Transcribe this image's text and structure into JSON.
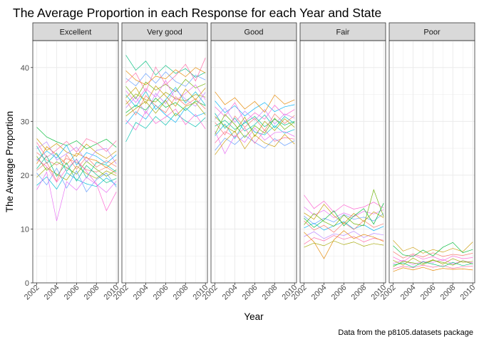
{
  "chart_data": {
    "type": "line",
    "title": "The Average Proportion in each Response for each Year and State",
    "xlabel": "Year",
    "ylabel": "The Average Proportion",
    "caption": "Data from the p8105.datasets package",
    "facets": [
      "Excellent",
      "Very good",
      "Good",
      "Fair",
      "Poor"
    ],
    "xlim": [
      2001.6,
      2010.2
    ],
    "ylim": [
      0,
      45
    ],
    "x_ticks": [
      2002,
      2004,
      2006,
      2008,
      2010
    ],
    "x_tick_labels": [
      "2002",
      "2004",
      "2006",
      "2008",
      "2010"
    ],
    "y_ticks": [
      0,
      10,
      20,
      30,
      40
    ],
    "y_tick_labels": [
      "0",
      "10",
      "20",
      "30",
      "40"
    ],
    "years": [
      2002,
      2003,
      2004,
      2005,
      2006,
      2007,
      2008,
      2009,
      2010
    ],
    "grid": true,
    "legend": "none",
    "line_colors": [
      "#F8766D",
      "#E58700",
      "#C99800",
      "#A3A500",
      "#6BB100",
      "#00BA38",
      "#00BF7D",
      "#00C0AF",
      "#00BCD8",
      "#00B0F6",
      "#619CFF",
      "#B983FF",
      "#E76BF3",
      "#FD61D1",
      "#FF67A4"
    ],
    "series": [
      {
        "facet": "Excellent",
        "values": [
          24.2,
          22.8,
          21.9,
          23.1,
          22.4,
          21.0,
          20.6,
          21.5,
          20.3
        ]
      },
      {
        "facet": "Excellent",
        "values": [
          22.1,
          25.3,
          23.8,
          22.0,
          24.1,
          23.2,
          22.7,
          21.4,
          22.9
        ]
      },
      {
        "facet": "Excellent",
        "values": [
          26.8,
          24.6,
          25.9,
          24.3,
          23.5,
          25.8,
          24.2,
          23.1,
          24.5
        ]
      },
      {
        "facet": "Excellent",
        "values": [
          19.6,
          21.4,
          20.2,
          19.1,
          21.7,
          20.3,
          19.4,
          20.8,
          19.9
        ]
      },
      {
        "facet": "Excellent",
        "values": [
          23.5,
          20.9,
          22.5,
          21.4,
          20.2,
          22.6,
          21.1,
          19.8,
          21.0
        ]
      },
      {
        "facet": "Excellent",
        "values": [
          28.9,
          27.1,
          26.2,
          25.5,
          26.4,
          24.9,
          25.8,
          26.7,
          25.2
        ]
      },
      {
        "facet": "Excellent",
        "values": [
          21.2,
          23.6,
          19.8,
          22.3,
          18.9,
          21.8,
          20.1,
          18.6,
          19.4
        ]
      },
      {
        "facet": "Excellent",
        "values": [
          25.4,
          22.2,
          24.1,
          20.7,
          23.0,
          19.5,
          22.4,
          21.9,
          20.6
        ]
      },
      {
        "facet": "Excellent",
        "values": [
          18.1,
          19.7,
          17.4,
          20.5,
          19.2,
          18.4,
          17.9,
          19.5,
          18.2
        ]
      },
      {
        "facet": "Excellent",
        "values": [
          22.7,
          24.5,
          23.2,
          25.6,
          21.9,
          24.2,
          23.5,
          22.2,
          23.8
        ]
      },
      {
        "facet": "Excellent",
        "values": [
          20.4,
          18.2,
          21.3,
          17.6,
          20.8,
          16.9,
          19.2,
          20.4,
          17.8
        ]
      },
      {
        "facet": "Excellent",
        "values": [
          24.9,
          26.2,
          22.8,
          24.0,
          25.2,
          22.5,
          24.6,
          25.0,
          22.1
        ]
      },
      {
        "facet": "Excellent",
        "values": [
          17.3,
          20.6,
          11.5,
          18.8,
          17.2,
          19.6,
          18.3,
          16.8,
          18.9
        ]
      },
      {
        "facet": "Excellent",
        "values": [
          23.0,
          21.6,
          18.7,
          21.2,
          22.9,
          20.7,
          18.4,
          13.4,
          16.9
        ]
      },
      {
        "facet": "Excellent",
        "values": [
          26.1,
          23.3,
          24.7,
          26.3,
          24.3,
          26.8,
          26.0,
          24.4,
          26.4
        ]
      },
      {
        "facet": "Excellent",
        "values": [
          20.9,
          22.4,
          18.9,
          23.8,
          21.1,
          23.4,
          21.5,
          22.7,
          21.6
        ]
      },
      {
        "facet": "Very good",
        "values": [
          33.2,
          35.1,
          34.0,
          33.6,
          35.4,
          34.2,
          33.8,
          35.0,
          34.5
        ]
      },
      {
        "facet": "Very good",
        "values": [
          36.5,
          34.2,
          37.3,
          35.8,
          36.9,
          35.5,
          37.8,
          36.2,
          37.0
        ]
      },
      {
        "facet": "Very good",
        "values": [
          31.6,
          33.0,
          32.1,
          34.3,
          32.6,
          33.5,
          32.0,
          33.8,
          32.9
        ]
      },
      {
        "facet": "Very good",
        "values": [
          42.3,
          39.5,
          41.2,
          38.6,
          40.4,
          38.9,
          39.8,
          38.2,
          39.1
        ]
      },
      {
        "facet": "Very good",
        "values": [
          26.2,
          29.8,
          28.7,
          30.9,
          29.3,
          31.5,
          30.1,
          29.0,
          30.7
        ]
      },
      {
        "facet": "Very good",
        "values": [
          34.9,
          32.7,
          35.6,
          32.2,
          34.0,
          36.3,
          33.4,
          35.5,
          33.0
        ]
      },
      {
        "facet": "Very good",
        "values": [
          29.5,
          31.8,
          30.4,
          33.0,
          31.2,
          29.8,
          32.5,
          30.9,
          31.6
        ]
      },
      {
        "facet": "Very good",
        "values": [
          38.0,
          36.6,
          38.9,
          37.1,
          39.2,
          37.4,
          36.5,
          38.6,
          37.7
        ]
      },
      {
        "facet": "Very good",
        "values": [
          32.5,
          34.6,
          31.4,
          35.2,
          33.3,
          35.9,
          34.1,
          32.8,
          35.4
        ]
      },
      {
        "facet": "Very good",
        "values": [
          35.7,
          33.5,
          36.1,
          34.5,
          37.6,
          33.9,
          35.2,
          36.8,
          34.0
        ]
      },
      {
        "facet": "Very good",
        "values": [
          30.2,
          28.4,
          31.9,
          29.6,
          30.8,
          32.3,
          29.4,
          31.3,
          28.6
        ]
      },
      {
        "facet": "Very good",
        "values": [
          37.2,
          39.0,
          35.5,
          40.1,
          36.8,
          38.5,
          40.6,
          37.5,
          41.8
        ]
      },
      {
        "facet": "Very good",
        "values": [
          33.9,
          31.2,
          34.8,
          32.9,
          31.6,
          34.6,
          33.0,
          34.2,
          32.3
        ]
      },
      {
        "facet": "Very good",
        "values": [
          39.4,
          37.7,
          36.8,
          38.4,
          37.9,
          39.6,
          38.3,
          40.0,
          39.0
        ]
      },
      {
        "facet": "Very good",
        "values": [
          34.4,
          36.3,
          33.3,
          36.6,
          34.7,
          32.8,
          36.0,
          34.0,
          36.2
        ]
      },
      {
        "facet": "Very good",
        "values": [
          31.0,
          32.4,
          33.7,
          31.5,
          33.9,
          31.0,
          32.8,
          33.5,
          31.2
        ]
      },
      {
        "facet": "Good",
        "values": [
          29.1,
          30.2,
          28.5,
          29.7,
          30.9,
          29.0,
          30.4,
          29.3,
          30.0
        ]
      },
      {
        "facet": "Good",
        "values": [
          31.5,
          28.7,
          30.6,
          28.2,
          29.4,
          31.2,
          28.8,
          30.9,
          29.6
        ]
      },
      {
        "facet": "Good",
        "values": [
          27.3,
          29.5,
          26.8,
          30.1,
          28.0,
          27.5,
          29.2,
          27.8,
          28.5
        ]
      },
      {
        "facet": "Good",
        "values": [
          33.8,
          31.6,
          32.9,
          31.0,
          32.4,
          33.5,
          31.8,
          32.7,
          33.1
        ]
      },
      {
        "facet": "Good",
        "values": [
          24.6,
          26.9,
          25.7,
          27.4,
          26.1,
          25.0,
          26.8,
          25.5,
          26.4
        ]
      },
      {
        "facet": "Good",
        "values": [
          30.4,
          32.5,
          29.8,
          31.9,
          30.2,
          32.2,
          29.5,
          31.4,
          30.6
        ]
      },
      {
        "facet": "Good",
        "values": [
          28.2,
          24.0,
          27.4,
          26.1,
          28.8,
          26.5,
          27.9,
          28.1,
          27.2
        ]
      },
      {
        "facet": "Good",
        "values": [
          32.7,
          30.9,
          33.5,
          29.9,
          31.6,
          30.4,
          33.0,
          31.1,
          32.2
        ]
      },
      {
        "facet": "Good",
        "values": [
          26.0,
          28.1,
          27.1,
          28.8,
          25.9,
          28.4,
          26.3,
          27.0,
          26.7
        ]
      },
      {
        "facet": "Good",
        "values": [
          29.8,
          27.5,
          31.0,
          28.9,
          30.6,
          28.3,
          31.4,
          29.6,
          31.1
        ]
      },
      {
        "facet": "Good",
        "values": [
          35.5,
          33.1,
          34.4,
          32.3,
          33.7,
          31.7,
          34.9,
          33.2,
          34.0
        ]
      },
      {
        "facet": "Good",
        "values": [
          23.8,
          26.3,
          28.2,
          24.9,
          27.5,
          26.0,
          25.3,
          27.6,
          25.8
        ]
      },
      {
        "facet": "Good",
        "values": [
          30.9,
          29.1,
          28.0,
          30.8,
          27.2,
          30.0,
          28.3,
          30.5,
          28.9
        ]
      },
      {
        "facet": "Good",
        "values": [
          27.6,
          31.3,
          29.4,
          27.0,
          29.2,
          27.8,
          30.6,
          28.5,
          29.9
        ]
      },
      {
        "facet": "Fair",
        "values": [
          10.2,
          11.1,
          9.8,
          10.6,
          11.4,
          10.0,
          10.8,
          9.7,
          10.5
        ]
      },
      {
        "facet": "Fair",
        "values": [
          12.4,
          10.9,
          12.0,
          11.3,
          12.7,
          11.8,
          12.2,
          11.5,
          12.9
        ]
      },
      {
        "facet": "Fair",
        "values": [
          8.6,
          9.5,
          8.2,
          9.1,
          8.8,
          9.6,
          8.4,
          9.2,
          8.9
        ]
      },
      {
        "facet": "Fair",
        "values": [
          14.1,
          12.6,
          13.5,
          12.1,
          13.0,
          12.3,
          13.3,
          12.8,
          13.6
        ]
      },
      {
        "facet": "Fair",
        "values": [
          16.3,
          13.8,
          15.2,
          13.1,
          14.5,
          13.7,
          14.1,
          15.0,
          13.9
        ]
      },
      {
        "facet": "Fair",
        "values": [
          7.2,
          8.4,
          7.8,
          8.8,
          8.1,
          8.6,
          7.6,
          8.3,
          7.9
        ]
      },
      {
        "facet": "Fair",
        "values": [
          11.5,
          9.8,
          10.7,
          9.4,
          11.2,
          9.9,
          11.6,
          10.3,
          11.0
        ]
      },
      {
        "facet": "Fair",
        "values": [
          9.4,
          7.6,
          4.5,
          8.0,
          9.7,
          8.2,
          9.0,
          8.5,
          7.7
        ]
      },
      {
        "facet": "Fair",
        "values": [
          13.0,
          11.8,
          14.6,
          12.5,
          11.0,
          12.9,
          11.4,
          13.2,
          12.1
        ]
      },
      {
        "facet": "Fair",
        "values": [
          6.6,
          7.4,
          6.9,
          7.8,
          7.1,
          7.6,
          6.8,
          7.3,
          7.0
        ]
      },
      {
        "facet": "Fair",
        "values": [
          10.8,
          12.9,
          11.4,
          10.5,
          12.6,
          11.0,
          10.6,
          17.3,
          12.3
        ]
      },
      {
        "facet": "Fair",
        "values": [
          12.0,
          10.3,
          11.7,
          13.4,
          10.6,
          12.4,
          13.8,
          10.9,
          14.8
        ]
      },
      {
        "facet": "Poor",
        "values": [
          3.6,
          4.2,
          3.4,
          4.0,
          3.8,
          4.4,
          3.5,
          4.1,
          3.7
        ]
      },
      {
        "facet": "Poor",
        "values": [
          4.8,
          3.9,
          5.2,
          4.4,
          4.9,
          4.1,
          5.0,
          4.5,
          4.7
        ]
      },
      {
        "facet": "Poor",
        "values": [
          2.6,
          3.1,
          2.8,
          3.3,
          2.9,
          3.2,
          2.7,
          3.0,
          3.1
        ]
      },
      {
        "facet": "Poor",
        "values": [
          5.8,
          4.6,
          5.4,
          4.8,
          5.6,
          4.9,
          5.3,
          5.1,
          5.5
        ]
      },
      {
        "facet": "Poor",
        "values": [
          2.1,
          2.8,
          2.4,
          2.9,
          2.3,
          2.7,
          2.5,
          2.6,
          2.4
        ]
      },
      {
        "facet": "Poor",
        "values": [
          7.9,
          5.9,
          6.6,
          5.5,
          6.2,
          5.7,
          6.4,
          5.8,
          7.6
        ]
      },
      {
        "facet": "Poor",
        "values": [
          4.2,
          3.3,
          4.6,
          3.6,
          4.3,
          3.5,
          4.5,
          3.8,
          4.0
        ]
      },
      {
        "facet": "Poor",
        "values": [
          3.0,
          4.0,
          3.7,
          3.4,
          4.2,
          3.8,
          3.3,
          4.1,
          3.5
        ]
      },
      {
        "facet": "Poor",
        "values": [
          6.9,
          5.2,
          4.9,
          6.1,
          5.0,
          6.6,
          7.5,
          5.6,
          6.2
        ]
      },
      {
        "facet": "Poor",
        "values": [
          3.3,
          3.7,
          2.9,
          3.9,
          3.5,
          3.0,
          3.8,
          3.2,
          3.6
        ]
      }
    ]
  }
}
